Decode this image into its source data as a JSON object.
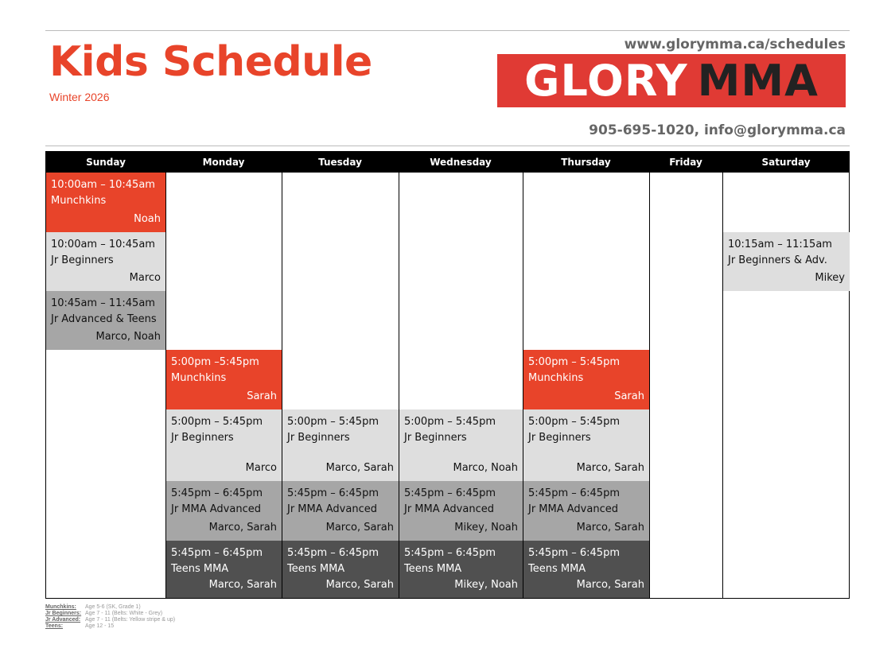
{
  "header": {
    "title": "Kids Schedule",
    "season": "Winter 2026",
    "url": "www.glorymma.ca/schedules",
    "logo": "GLORY MMA",
    "logo_parts": [
      "GLORY",
      "MMA"
    ],
    "contact": "905-695-1020, info@glorymma.ca"
  },
  "colors": {
    "accent": "#e8442a",
    "light": "#dedede",
    "mid": "#a6a6a6",
    "dark": "#505050"
  },
  "days": [
    "Sunday",
    "Monday",
    "Tuesday",
    "Wednesday",
    "Thursday",
    "Friday",
    "Saturday"
  ],
  "classes": {
    "sun": [
      {
        "time": "10:00am – 10:45am",
        "name": "Munchkins",
        "instructor": "Noah"
      },
      {
        "time": "10:00am – 10:45am",
        "name": "Jr Beginners",
        "instructor": "Marco"
      },
      {
        "time": "10:45am – 11:45am",
        "name": "Jr Advanced & Teens",
        "instructor": "Marco, Noah"
      }
    ],
    "mon": [
      {
        "time": "5:00pm –5:45pm",
        "name": "Munchkins",
        "instructor": "Sarah"
      },
      {
        "time": "5:00pm – 5:45pm",
        "name": "Jr Beginners",
        "instructor": "Marco"
      },
      {
        "time": "5:45pm – 6:45pm",
        "name": "Jr MMA Advanced",
        "instructor": "Marco, Sarah"
      },
      {
        "time": "5:45pm – 6:45pm",
        "name": "Teens MMA",
        "instructor": "Marco, Sarah"
      }
    ],
    "tue": [
      {
        "time": "5:00pm – 5:45pm",
        "name": "Jr Beginners",
        "instructor": "Marco, Sarah"
      },
      {
        "time": "5:45pm – 6:45pm",
        "name": "Jr MMA Advanced",
        "instructor": "Marco, Sarah"
      },
      {
        "time": "5:45pm – 6:45pm",
        "name": "Teens MMA",
        "instructor": "Marco, Sarah"
      }
    ],
    "wed": [
      {
        "time": "5:00pm – 5:45pm",
        "name": "Jr Beginners",
        "instructor": "Marco, Noah"
      },
      {
        "time": "5:45pm – 6:45pm",
        "name": "Jr MMA Advanced",
        "instructor": "Mikey, Noah"
      },
      {
        "time": "5:45pm – 6:45pm",
        "name": "Teens MMA",
        "instructor": "Mikey, Noah"
      }
    ],
    "thu": [
      {
        "time": "5:00pm – 5:45pm",
        "name": "Munchkins",
        "instructor": "Sarah"
      },
      {
        "time": "5:00pm – 5:45pm",
        "name": "Jr Beginners",
        "instructor": "Marco, Sarah"
      },
      {
        "time": "5:45pm – 6:45pm",
        "name": "Jr MMA Advanced",
        "instructor": "Marco, Sarah"
      },
      {
        "time": "5:45pm – 6:45pm",
        "name": "Teens MMA",
        "instructor": "Marco, Sarah"
      }
    ],
    "sat": [
      {
        "time": "10:15am – 11:15am",
        "name": "Jr Beginners & Adv.",
        "instructor": "Mikey"
      }
    ]
  },
  "legend": [
    {
      "key": "Munchkins:",
      "value": "Age 5-6 (SK, Grade 1)"
    },
    {
      "key": "Jr Beginners:",
      "value": "Age 7 - 11 (Belts: White - Grey)"
    },
    {
      "key": "Jr Advanced:",
      "value": "Age 7 - 11 (Belts: Yellow stripe & up)"
    },
    {
      "key": "Teens:",
      "value": "Age 12 - 15"
    }
  ]
}
